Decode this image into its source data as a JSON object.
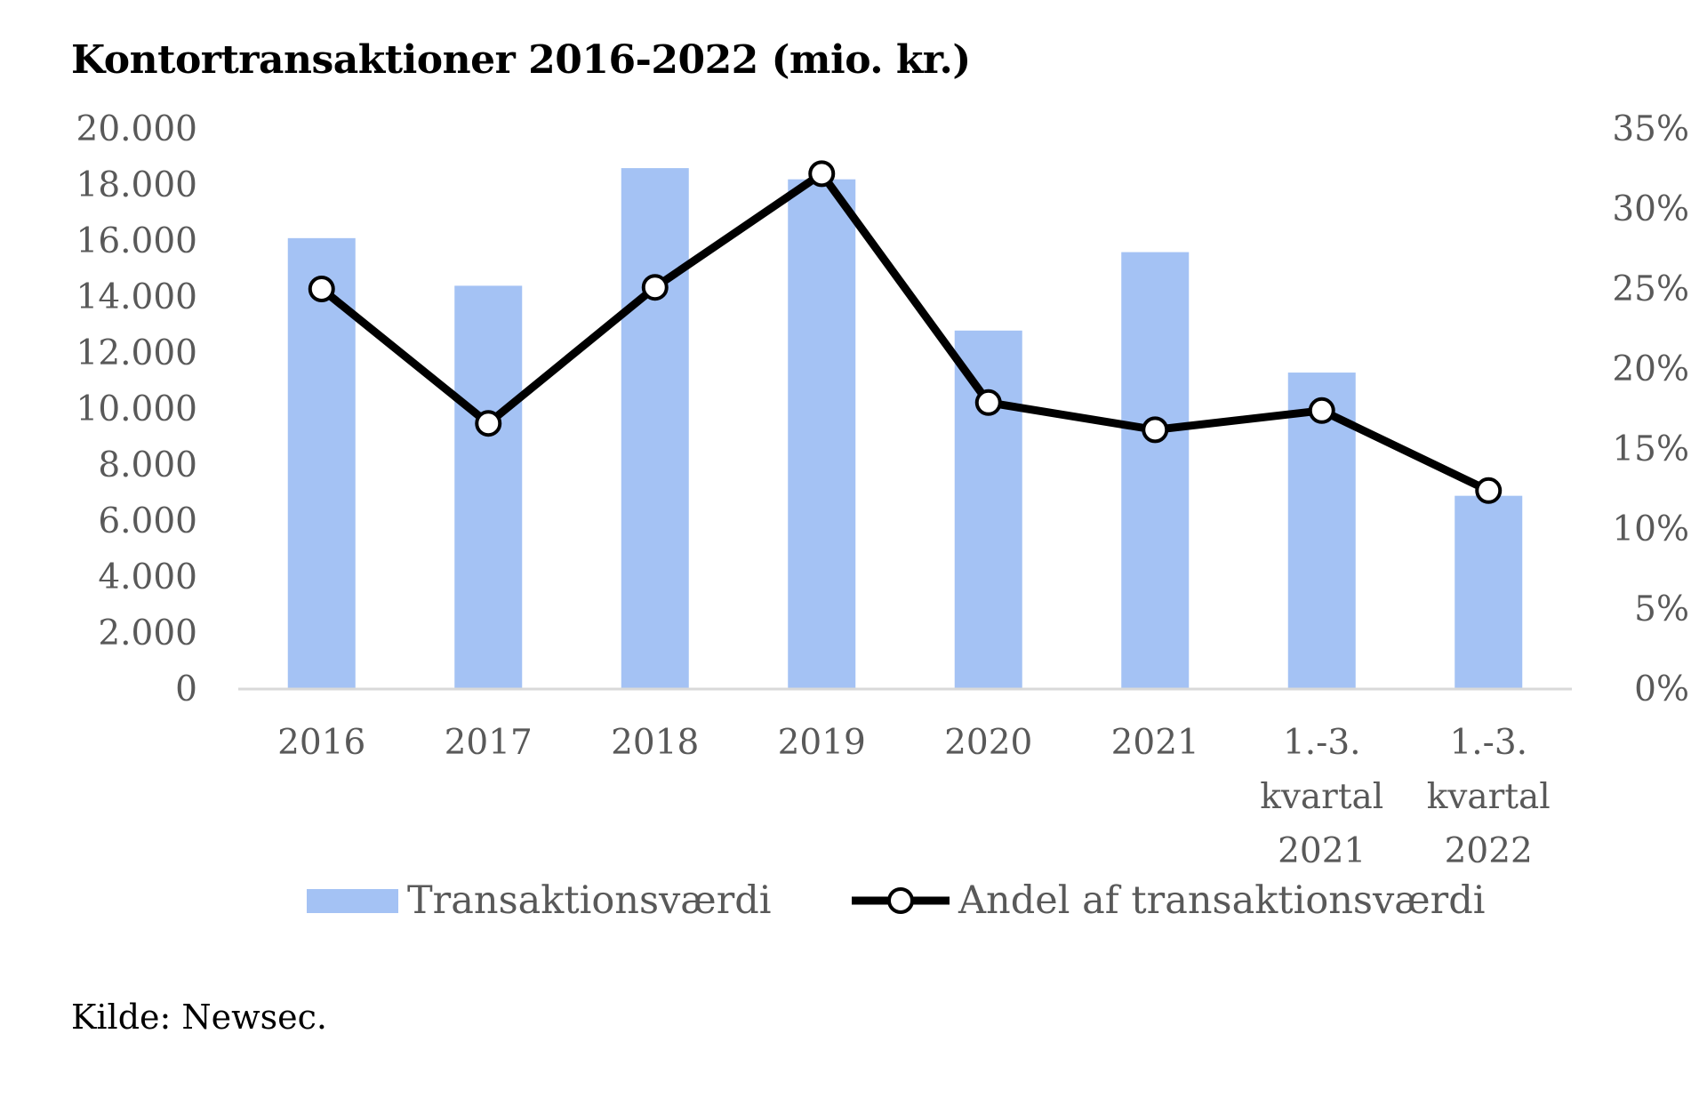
{
  "chart_data": {
    "type": "bar",
    "title": "Kontortransaktioner 2016-2022 (mio. kr.)",
    "categories": [
      [
        "2016"
      ],
      [
        "2017"
      ],
      [
        "2018"
      ],
      [
        "2019"
      ],
      [
        "2020"
      ],
      [
        "2021"
      ],
      [
        "1.-3.",
        "kvartal",
        "2021"
      ],
      [
        "1.-3.",
        "kvartal",
        "2022"
      ]
    ],
    "series": [
      {
        "name": "Transaktionsværdi",
        "type": "bar",
        "axis": "left",
        "color": "#a4c2f4",
        "values": [
          16100,
          14400,
          18600,
          18200,
          12800,
          15600,
          11300,
          6900
        ]
      },
      {
        "name": "Andel af transaktionsværdi",
        "type": "line",
        "axis": "right",
        "color": "#000000",
        "marker": "open-circle",
        "values": [
          25.0,
          16.6,
          25.1,
          32.2,
          17.9,
          16.2,
          17.4,
          12.4
        ]
      }
    ],
    "y_left": {
      "ylim": [
        0,
        20000
      ],
      "ticks": [
        "0",
        "2.000",
        "4.000",
        "6.000",
        "8.000",
        "10.000",
        "12.000",
        "14.000",
        "16.000",
        "18.000",
        "20.000"
      ]
    },
    "y_right": {
      "ylim": [
        0,
        35
      ],
      "ticks": [
        "0%",
        "5%",
        "10%",
        "15%",
        "20%",
        "25%",
        "30%",
        "35%"
      ]
    },
    "grid": false,
    "legend": "bottom"
  },
  "source": "Kilde: Newsec."
}
